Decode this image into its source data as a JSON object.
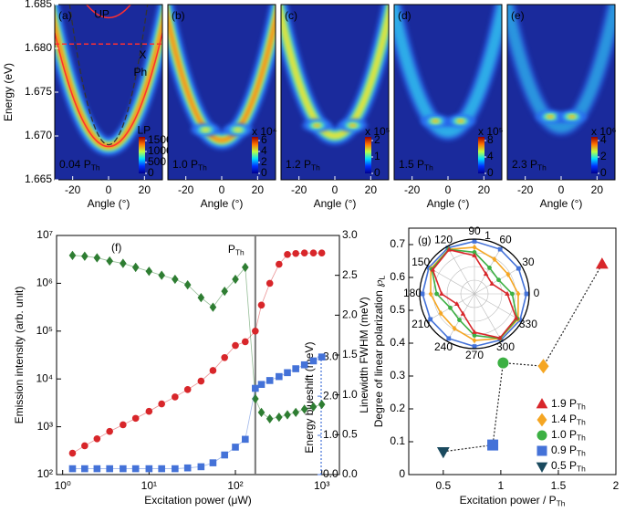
{
  "chart_data": [
    {
      "type": "heatmap",
      "label": "(a)",
      "xlim": [
        -30,
        30
      ],
      "xticks": [
        -20,
        0,
        20
      ],
      "xlabel": "Angle (°)",
      "ylim": [
        1.665,
        1.685
      ],
      "yticks": [
        1.665,
        {
          "value": 1.67,
          "label": "1.670"
        },
        1.675,
        {
          "value": 1.68,
          "label": "1.680"
        },
        1.685
      ],
      "ylabel": "Energy (eV)",
      "power": "0.04 P",
      "power_sub": "Th",
      "annotations": [
        "UP",
        "X",
        "Ph",
        "LP"
      ],
      "colorbar": {
        "ticks": [
          0,
          500,
          1000,
          1500
        ]
      }
    },
    {
      "type": "heatmap",
      "label": "(b)",
      "xlim": [
        -30,
        30
      ],
      "xticks": [
        -20,
        0,
        20
      ],
      "xlabel": "Angle (°)",
      "ylim": [
        1.665,
        1.685
      ],
      "power": "1.0 P",
      "power_sub": "Th",
      "colorbar": {
        "ticks": [
          0,
          2,
          4,
          6
        ],
        "scale": "x 10⁴"
      }
    },
    {
      "type": "heatmap",
      "label": "(c)",
      "xlim": [
        -30,
        30
      ],
      "xticks": [
        -20,
        0,
        20
      ],
      "xlabel": "Angle (°)",
      "ylim": [
        1.665,
        1.685
      ],
      "power": "1.2 P",
      "power_sub": "Th",
      "colorbar": {
        "ticks": [
          0,
          1,
          2
        ],
        "scale": "x 10⁵"
      }
    },
    {
      "type": "heatmap",
      "label": "(d)",
      "xlim": [
        -30,
        30
      ],
      "xticks": [
        -20,
        0,
        20
      ],
      "xlabel": "Angle (°)",
      "ylim": [
        1.665,
        1.685
      ],
      "power": "1.5 P",
      "power_sub": "Th",
      "colorbar": {
        "ticks": [
          0,
          4,
          8
        ],
        "scale": "x 10⁵"
      }
    },
    {
      "type": "heatmap",
      "label": "(e)",
      "xlim": [
        -30,
        30
      ],
      "xticks": [
        -20,
        0,
        20
      ],
      "xlabel": "Angle (°)",
      "ylim": [
        1.665,
        1.685
      ],
      "power": "2.3 P",
      "power_sub": "Th",
      "colorbar": {
        "ticks": [
          0,
          2,
          4
        ],
        "scale": "x 10⁶"
      }
    },
    {
      "type": "scatter",
      "label": "(f)",
      "xscale": "log",
      "yscale": "log",
      "xlim": [
        0.85,
        1600
      ],
      "xticks": [
        {
          "value": 1,
          "label": "10⁰"
        },
        {
          "value": 10,
          "label": "10¹"
        },
        {
          "value": 100,
          "label": "10²"
        },
        {
          "value": 1000,
          "label": "10³"
        }
      ],
      "ylim": [
        100,
        10000000
      ],
      "yticks": [
        {
          "value": 100,
          "label": "10²"
        },
        {
          "value": 1000,
          "label": "10³"
        },
        {
          "value": 10000,
          "label": "10⁴"
        },
        {
          "value": 100000,
          "label": "10⁵"
        },
        {
          "value": 1000000,
          "label": "10⁶"
        },
        {
          "value": 10000000,
          "label": "10⁷"
        }
      ],
      "y2lim": [
        0,
        3
      ],
      "y2ticks": [
        {
          "value": 0,
          "label": "0.0"
        },
        0.5,
        {
          "value": 1,
          "label": "1.0"
        },
        1.5,
        {
          "value": 2,
          "label": "2.0"
        },
        2.5,
        {
          "value": 3,
          "label": "3.0"
        }
      ],
      "y3lim": [
        0,
        6.1
      ],
      "y3ticks": [
        {
          "value": 0,
          "label": "0.0"
        },
        {
          "value": 1,
          "label": "1.0"
        },
        {
          "value": 2,
          "label": "2.0"
        },
        {
          "value": 3,
          "label": "3.0"
        }
      ],
      "xlabel": "Excitation power (μW)",
      "ylabel": "Emission intensity (arb. unit)",
      "y2label": "Linewidth FWHM (meV)",
      "y3label": "Energy blueshift (meV)",
      "threshold": {
        "x": 170,
        "label": "P",
        "label_sub": "Th"
      },
      "series": [
        {
          "color": "#d8262a",
          "marker": "circle",
          "axis": "y",
          "x": [
            1.3,
            1.8,
            2.5,
            3.5,
            5,
            7,
            10,
            14,
            20,
            28,
            40,
            55,
            75,
            100,
            130,
            170,
            200,
            250,
            320,
            400,
            500,
            630,
            800,
            1000
          ],
          "values": [
            280,
            400,
            560,
            800,
            1100,
            1500,
            2100,
            3000,
            4200,
            6000,
            9000,
            15000,
            28000,
            50000,
            60000,
            100000,
            350000,
            1000000,
            2500000,
            4000000,
            4200000,
            4300000,
            4300000,
            4300000
          ]
        },
        {
          "color": "#2e7d32",
          "marker": "diamond",
          "axis": "y2",
          "x": [
            1.3,
            1.8,
            2.5,
            3.5,
            5,
            7,
            10,
            14,
            20,
            28,
            40,
            55,
            75,
            100,
            130,
            170,
            200,
            250,
            320,
            400,
            500,
            630,
            800,
            1000
          ],
          "values": [
            2.75,
            2.74,
            2.72,
            2.68,
            2.65,
            2.6,
            2.55,
            2.5,
            2.45,
            2.38,
            2.22,
            2.1,
            2.3,
            2.45,
            2.6,
            0.95,
            0.78,
            0.7,
            0.72,
            0.75,
            0.78,
            0.82,
            0.85,
            0.88
          ]
        },
        {
          "color": "#4472d8",
          "marker": "square",
          "axis": "y3",
          "x": [
            1.3,
            1.8,
            2.5,
            3.5,
            5,
            7,
            10,
            14,
            20,
            28,
            40,
            55,
            75,
            100,
            130,
            170,
            200,
            250,
            320,
            400,
            500,
            630,
            800,
            1000
          ],
          "values": [
            0.15,
            0.15,
            0.15,
            0.15,
            0.15,
            0.15,
            0.15,
            0.15,
            0.15,
            0.17,
            0.2,
            0.3,
            0.5,
            0.7,
            0.9,
            2.2,
            2.3,
            2.4,
            2.5,
            2.6,
            2.7,
            2.8,
            2.9,
            3.0
          ]
        }
      ]
    },
    {
      "type": "scatter",
      "label": "(g)",
      "xlim": [
        0.2,
        2
      ],
      "xticks": [
        0.5,
        1,
        1.5,
        2
      ],
      "ylim": [
        0,
        0.75
      ],
      "yticks": [
        0,
        0.1,
        0.2,
        0.3,
        0.4,
        0.5,
        0.6,
        0.7
      ],
      "xlabel": "Excitation power / P",
      "xlabel_sub": "Th",
      "ylabel": "Degree of linear polarization ℘",
      "ylabel_sub": "L",
      "connect": true,
      "series": [
        {
          "name": "1.9 P",
          "name_sub": "Th",
          "color": "#d8262a",
          "marker": "triangle-up",
          "x": [
            1.88
          ],
          "values": [
            0.64
          ]
        },
        {
          "name": "1.4 P",
          "name_sub": "Th",
          "color": "#f5a623",
          "marker": "diamond",
          "x": [
            1.37
          ],
          "values": [
            0.33
          ]
        },
        {
          "name": "1.0 P",
          "name_sub": "Th",
          "color": "#3cb043",
          "marker": "circle",
          "x": [
            1.02
          ],
          "values": [
            0.34
          ]
        },
        {
          "name": "0.9 P",
          "name_sub": "Th",
          "color": "#4472d8",
          "marker": "square",
          "x": [
            0.93
          ],
          "values": [
            0.09
          ]
        },
        {
          "name": "0.5 P",
          "name_sub": "Th",
          "color": "#1a4a5e",
          "marker": "triangle-down",
          "x": [
            0.5
          ],
          "values": [
            0.07
          ]
        }
      ]
    },
    {
      "type": "polar",
      "angles": [
        0,
        30,
        60,
        90,
        120,
        150,
        180,
        210,
        240,
        270,
        300,
        330
      ],
      "theta_ticks": [
        0,
        30,
        60,
        90,
        120,
        150,
        180,
        210,
        240,
        270,
        300,
        330
      ],
      "rlim": [
        0,
        1
      ],
      "rticks": [
        1
      ],
      "series": [
        {
          "color": "#4472d8",
          "marker": "square",
          "values": [
            0.95,
            0.93,
            0.94,
            0.96,
            0.97,
            0.96,
            0.95,
            0.93,
            0.94,
            0.96,
            0.97,
            0.96
          ]
        },
        {
          "color": "#f5a623",
          "marker": "diamond",
          "values": [
            0.8,
            0.71,
            0.73,
            0.85,
            0.94,
            0.92,
            0.8,
            0.71,
            0.73,
            0.85,
            0.94,
            0.92
          ]
        },
        {
          "color": "#3cb043",
          "marker": "circle",
          "values": [
            0.69,
            0.51,
            0.55,
            0.76,
            0.94,
            0.9,
            0.69,
            0.51,
            0.55,
            0.76,
            0.94,
            0.9
          ]
        },
        {
          "color": "#d8262a",
          "marker": "triangle-up",
          "values": [
            0.6,
            0.37,
            0.42,
            0.7,
            0.93,
            0.88,
            0.6,
            0.37,
            0.42,
            0.7,
            0.93,
            0.88
          ]
        }
      ]
    }
  ]
}
